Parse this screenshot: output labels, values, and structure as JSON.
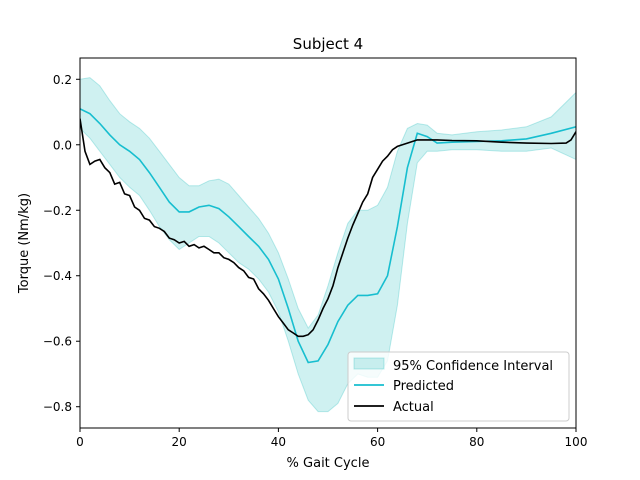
{
  "chart_data": {
    "type": "line",
    "title": "Subject 4",
    "xlabel": "% Gait Cycle",
    "ylabel": "Torque (Nm/kg)",
    "xlim": [
      0,
      100
    ],
    "ylim": [
      -0.865,
      0.265
    ],
    "xticks": [
      0,
      20,
      40,
      60,
      80,
      100
    ],
    "yticks": [
      -0.8,
      -0.6,
      -0.4,
      -0.2,
      0.0,
      0.2
    ],
    "xtick_labels": [
      "0",
      "20",
      "40",
      "60",
      "80",
      "100"
    ],
    "ytick_labels": [
      "−0.8",
      "−0.6",
      "−0.4",
      "−0.2",
      "0.0",
      "0.2"
    ],
    "grid": false,
    "legend_position": "lower-right",
    "legend": [
      "95% Confidence Interval",
      "Predicted",
      "Actual"
    ],
    "colors": {
      "band": "#00b3b3",
      "predicted": "#17becf",
      "actual": "#000000"
    },
    "series": [
      {
        "name": "Predicted",
        "x": [
          0,
          2,
          4,
          6,
          8,
          10,
          12,
          14,
          16,
          18,
          20,
          22,
          24,
          26,
          28,
          30,
          32,
          34,
          36,
          38,
          40,
          42,
          44,
          46,
          48,
          50,
          52,
          54,
          56,
          58,
          60,
          62,
          64,
          66,
          68,
          70,
          72,
          75,
          80,
          85,
          90,
          95,
          100
        ],
        "y": [
          0.11,
          0.095,
          0.065,
          0.03,
          0.0,
          -0.02,
          -0.045,
          -0.085,
          -0.13,
          -0.175,
          -0.205,
          -0.205,
          -0.19,
          -0.185,
          -0.195,
          -0.22,
          -0.25,
          -0.28,
          -0.31,
          -0.35,
          -0.41,
          -0.5,
          -0.6,
          -0.665,
          -0.66,
          -0.61,
          -0.54,
          -0.49,
          -0.46,
          -0.46,
          -0.455,
          -0.4,
          -0.25,
          -0.07,
          0.035,
          0.025,
          0.005,
          0.008,
          0.01,
          0.012,
          0.018,
          0.035,
          0.055
        ]
      },
      {
        "name": "95% Confidence Interval",
        "x": [
          0,
          2,
          4,
          6,
          8,
          10,
          12,
          14,
          16,
          18,
          20,
          22,
          24,
          26,
          28,
          30,
          32,
          34,
          36,
          38,
          40,
          42,
          44,
          46,
          48,
          50,
          52,
          54,
          56,
          58,
          60,
          62,
          64,
          66,
          68,
          70,
          72,
          75,
          80,
          85,
          90,
          95,
          100
        ],
        "upper": [
          0.2,
          0.205,
          0.18,
          0.135,
          0.095,
          0.07,
          0.05,
          0.02,
          -0.02,
          -0.06,
          -0.1,
          -0.125,
          -0.125,
          -0.11,
          -0.105,
          -0.12,
          -0.155,
          -0.19,
          -0.225,
          -0.27,
          -0.33,
          -0.41,
          -0.5,
          -0.56,
          -0.52,
          -0.43,
          -0.33,
          -0.24,
          -0.2,
          -0.2,
          -0.185,
          -0.13,
          -0.02,
          0.05,
          0.065,
          0.06,
          0.035,
          0.03,
          0.04,
          0.045,
          0.055,
          0.085,
          0.16
        ],
        "lower": [
          0.05,
          0.02,
          -0.02,
          -0.06,
          -0.1,
          -0.13,
          -0.155,
          -0.2,
          -0.25,
          -0.29,
          -0.32,
          -0.3,
          -0.28,
          -0.28,
          -0.3,
          -0.33,
          -0.36,
          -0.38,
          -0.41,
          -0.45,
          -0.51,
          -0.6,
          -0.7,
          -0.78,
          -0.815,
          -0.815,
          -0.79,
          -0.73,
          -0.7,
          -0.71,
          -0.71,
          -0.66,
          -0.49,
          -0.24,
          -0.055,
          -0.02,
          -0.02,
          -0.015,
          -0.015,
          -0.02,
          -0.02,
          -0.01,
          -0.045
        ]
      },
      {
        "name": "Actual",
        "x": [
          0,
          1,
          2,
          3,
          4,
          5,
          6,
          7,
          8,
          9,
          10,
          11,
          12,
          13,
          14,
          15,
          16,
          17,
          18,
          19,
          20,
          21,
          22,
          23,
          24,
          25,
          26,
          27,
          28,
          29,
          30,
          31,
          32,
          33,
          34,
          35,
          36,
          37,
          38,
          39,
          40,
          41,
          42,
          43,
          44,
          45,
          46,
          47,
          48,
          49,
          50,
          51,
          52,
          53,
          54,
          55,
          56,
          57,
          58,
          59,
          60,
          61,
          62,
          63,
          64,
          65,
          66,
          67,
          68,
          70,
          72,
          75,
          80,
          85,
          90,
          95,
          98,
          99,
          100
        ],
        "y": [
          0.08,
          -0.02,
          -0.06,
          -0.05,
          -0.045,
          -0.07,
          -0.085,
          -0.12,
          -0.115,
          -0.15,
          -0.155,
          -0.19,
          -0.2,
          -0.225,
          -0.23,
          -0.25,
          -0.255,
          -0.265,
          -0.285,
          -0.29,
          -0.3,
          -0.295,
          -0.31,
          -0.305,
          -0.315,
          -0.31,
          -0.32,
          -0.33,
          -0.33,
          -0.345,
          -0.35,
          -0.36,
          -0.375,
          -0.385,
          -0.405,
          -0.41,
          -0.44,
          -0.455,
          -0.475,
          -0.5,
          -0.525,
          -0.545,
          -0.565,
          -0.575,
          -0.585,
          -0.585,
          -0.58,
          -0.565,
          -0.535,
          -0.5,
          -0.47,
          -0.43,
          -0.375,
          -0.33,
          -0.285,
          -0.245,
          -0.21,
          -0.175,
          -0.15,
          -0.1,
          -0.075,
          -0.05,
          -0.035,
          -0.015,
          -0.005,
          0.0,
          0.005,
          0.01,
          0.015,
          0.015,
          0.015,
          0.013,
          0.012,
          0.008,
          0.005,
          0.004,
          0.005,
          0.015,
          0.04
        ]
      }
    ]
  }
}
